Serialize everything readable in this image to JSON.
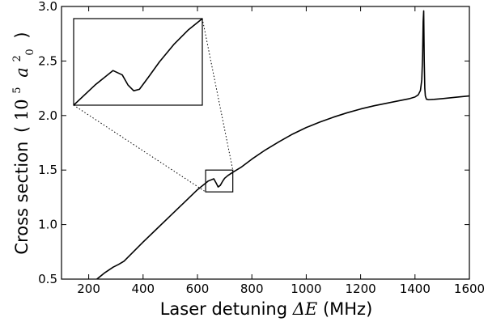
{
  "chart_data": {
    "type": "line",
    "title": "",
    "xlabel_text": "Laser detuning",
    "xlabel_math": "ΔE",
    "xlabel_unit": "(MHz)",
    "ylabel_text": "Cross section",
    "ylabel_math_base": "10",
    "ylabel_math_exp": "5",
    "ylabel_math_symbol": "a",
    "ylabel_math_sub": "0",
    "ylabel_math_sup": "2",
    "xlim": [
      100,
      1600
    ],
    "ylim": [
      0.5,
      3.0
    ],
    "xticks": [
      200,
      400,
      600,
      800,
      1000,
      1200,
      1400,
      1600
    ],
    "yticks": [
      0.5,
      1.0,
      1.5,
      2.0,
      2.5,
      3.0
    ],
    "xtick_labels": [
      "200",
      "400",
      "600",
      "800",
      "1000",
      "1200",
      "1400",
      "1600"
    ],
    "ytick_labels": [
      "0.5",
      "1.0",
      "1.5",
      "2.0",
      "2.5",
      "3.0"
    ],
    "grid": false,
    "legend": false,
    "series": [
      {
        "color": "#000000",
        "x": [
          230,
          260,
          290,
          310,
          330,
          360,
          400,
          450,
          500,
          550,
          600,
          640,
          660,
          670,
          676,
          684,
          692,
          700,
          712,
          730,
          760,
          800,
          850,
          900,
          950,
          1000,
          1050,
          1100,
          1150,
          1200,
          1250,
          1300,
          1350,
          1380,
          1400,
          1412,
          1420,
          1425,
          1428,
          1430,
          1432,
          1434,
          1436,
          1438,
          1442,
          1450,
          1470,
          1500,
          1550,
          1600
        ],
        "y": [
          0.5,
          0.56,
          0.61,
          0.635,
          0.665,
          0.74,
          0.84,
          0.96,
          1.08,
          1.2,
          1.32,
          1.4,
          1.42,
          1.375,
          1.345,
          1.36,
          1.395,
          1.425,
          1.45,
          1.48,
          1.525,
          1.6,
          1.685,
          1.76,
          1.83,
          1.89,
          1.94,
          1.985,
          2.025,
          2.06,
          2.09,
          2.115,
          2.14,
          2.155,
          2.17,
          2.19,
          2.23,
          2.33,
          2.55,
          2.86,
          2.96,
          2.5,
          2.25,
          2.18,
          2.15,
          2.145,
          2.148,
          2.155,
          2.168,
          2.18
        ]
      }
    ],
    "zoom_region": {
      "x": [
        630,
        730
      ],
      "y": [
        1.3,
        1.5
      ]
    },
    "inset": {
      "x": [
        600,
        780
      ],
      "y": [
        1.3,
        1.6
      ],
      "series_x": [
        600,
        630,
        655,
        668,
        676,
        684,
        692,
        704,
        720,
        740,
        760,
        780
      ],
      "series_y": [
        1.3,
        1.37,
        1.42,
        1.405,
        1.37,
        1.35,
        1.355,
        1.395,
        1.45,
        1.51,
        1.56,
        1.6
      ]
    }
  }
}
